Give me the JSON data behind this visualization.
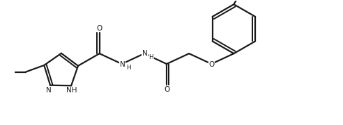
{
  "background_color": "#ffffff",
  "line_color": "#1a1a1a",
  "line_width": 1.6,
  "font_size": 7.5,
  "figsize": [
    4.92,
    1.8
  ],
  "dpi": 100,
  "xlim": [
    0,
    9.84
  ],
  "ylim": [
    0,
    3.6
  ]
}
